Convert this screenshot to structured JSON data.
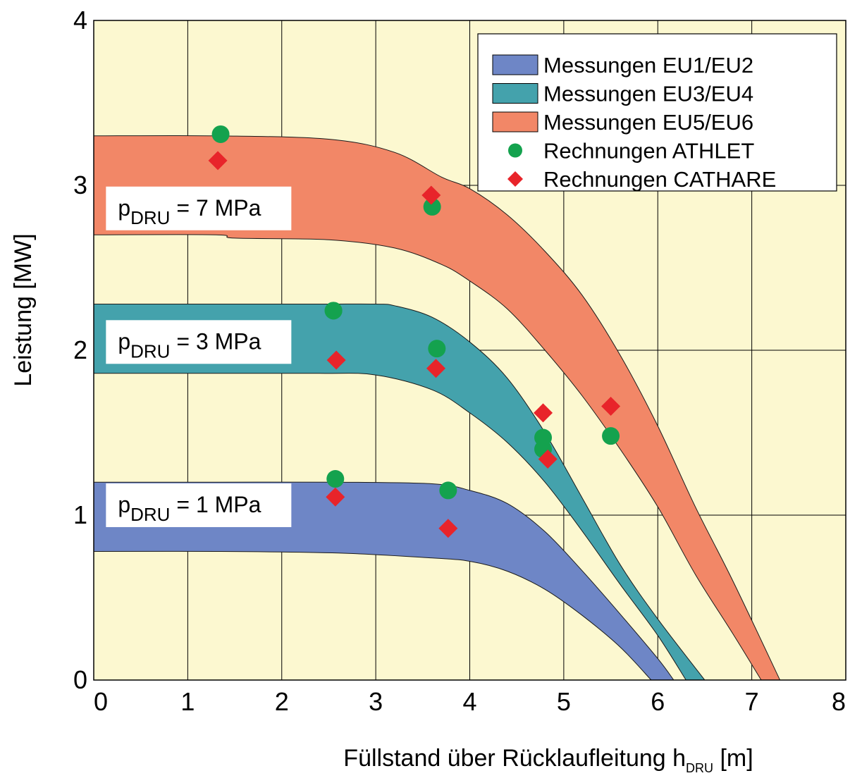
{
  "chart_data": {
    "type": "area",
    "xlabel": {
      "main": "Füllstand über Rücklaufleitung  h",
      "sub": "DRU",
      "unit": " [m]"
    },
    "ylabel": "Leistung  [MW]",
    "xlim": [
      0,
      8
    ],
    "ylim": [
      0,
      4
    ],
    "xticks": [
      "0",
      "1",
      "2",
      "3",
      "4",
      "5",
      "6",
      "7",
      "8"
    ],
    "yticks": [
      "0",
      "1",
      "2",
      "3",
      "4"
    ],
    "grid": true,
    "legend_position": "top-right",
    "background": "#fcf8d0",
    "bands": [
      {
        "name": "Messungen  EU1/EU2",
        "color": "#6e86c6",
        "upper": [
          [
            0,
            1.2
          ],
          [
            1.3,
            1.2
          ],
          [
            2.6,
            1.2
          ],
          [
            3.6,
            1.19
          ],
          [
            4.0,
            1.15
          ],
          [
            4.4,
            1.07
          ],
          [
            4.8,
            0.9
          ],
          [
            5.2,
            0.66
          ],
          [
            5.6,
            0.4
          ],
          [
            6.0,
            0.13
          ],
          [
            6.17,
            0.0
          ]
        ],
        "lower": [
          [
            0,
            0.78
          ],
          [
            1.3,
            0.78
          ],
          [
            2.6,
            0.77
          ],
          [
            3.6,
            0.74
          ],
          [
            4.0,
            0.72
          ],
          [
            4.4,
            0.66
          ],
          [
            4.8,
            0.55
          ],
          [
            5.2,
            0.39
          ],
          [
            5.6,
            0.2
          ],
          [
            5.93,
            0.0
          ]
        ]
      },
      {
        "name": "Messungen  EU3/EU4",
        "color": "#44a2ac",
        "upper": [
          [
            0,
            2.28
          ],
          [
            1.2,
            2.28
          ],
          [
            2.4,
            2.28
          ],
          [
            3.0,
            2.28
          ],
          [
            3.2,
            2.27
          ],
          [
            3.6,
            2.2
          ],
          [
            4.0,
            2.05
          ],
          [
            4.4,
            1.83
          ],
          [
            4.8,
            1.5
          ],
          [
            5.2,
            1.1
          ],
          [
            5.6,
            0.7
          ],
          [
            6.0,
            0.37
          ],
          [
            6.5,
            0.0
          ]
        ],
        "lower": [
          [
            0,
            1.86
          ],
          [
            1.2,
            1.86
          ],
          [
            2.4,
            1.86
          ],
          [
            3.0,
            1.85
          ],
          [
            3.6,
            1.76
          ],
          [
            4.0,
            1.62
          ],
          [
            4.4,
            1.44
          ],
          [
            4.8,
            1.2
          ],
          [
            5.2,
            0.9
          ],
          [
            5.6,
            0.58
          ],
          [
            6.0,
            0.27
          ],
          [
            6.3,
            0.0
          ]
        ]
      },
      {
        "name": "Messungen  EU5/EU6",
        "color": "#f28767",
        "upper": [
          [
            0,
            3.3
          ],
          [
            1.3,
            3.3
          ],
          [
            2.5,
            3.28
          ],
          [
            3.2,
            3.2
          ],
          [
            3.7,
            3.05
          ],
          [
            4.0,
            2.98
          ],
          [
            4.4,
            2.82
          ],
          [
            4.8,
            2.6
          ],
          [
            5.2,
            2.33
          ],
          [
            5.6,
            1.97
          ],
          [
            6.0,
            1.54
          ],
          [
            6.4,
            1.05
          ],
          [
            6.8,
            0.6
          ],
          [
            7.3,
            0.0
          ]
        ],
        "lower": [
          [
            0,
            2.7
          ],
          [
            1.3,
            2.7
          ],
          [
            1.5,
            2.68
          ],
          [
            2.5,
            2.67
          ],
          [
            3.2,
            2.62
          ],
          [
            3.7,
            2.52
          ],
          [
            4.0,
            2.42
          ],
          [
            4.4,
            2.25
          ],
          [
            4.8,
            2.0
          ],
          [
            5.2,
            1.72
          ],
          [
            5.6,
            1.4
          ],
          [
            6.0,
            1.05
          ],
          [
            6.4,
            0.64
          ],
          [
            6.8,
            0.28
          ],
          [
            7.1,
            0.0
          ]
        ]
      }
    ],
    "series": [
      {
        "name": "Rechnungen  ATHLET",
        "marker": "circle",
        "color": "#14a24e",
        "x": [
          1.35,
          2.55,
          3.6,
          2.55,
          3.65,
          4.78,
          4.78,
          5.5,
          2.57,
          3.77
        ],
        "y": [
          3.31,
          2.24,
          2.87,
          2.24,
          2.01,
          1.47,
          1.4,
          1.48,
          1.22,
          1.15
        ]
      },
      {
        "name": "Rechnungen  CATHARE",
        "marker": "diamond",
        "color": "#e8242a",
        "x": [
          1.32,
          3.59,
          2.58,
          3.64,
          4.78,
          4.83,
          5.5,
          2.57,
          3.77
        ],
        "y": [
          3.15,
          2.94,
          1.94,
          1.89,
          1.62,
          1.34,
          1.66,
          1.11,
          0.92
        ]
      }
    ],
    "annotations": [
      {
        "p": "p",
        "sub": "DRU",
        "text": " = 7 MPa",
        "x": 0.55,
        "y": 2.86
      },
      {
        "p": "p",
        "sub": "DRU",
        "text": " = 3 MPa",
        "x": 0.55,
        "y": 2.05
      },
      {
        "p": "p",
        "sub": "DRU",
        "text": " = 1 MPa",
        "x": 0.55,
        "y": 1.06
      }
    ]
  }
}
